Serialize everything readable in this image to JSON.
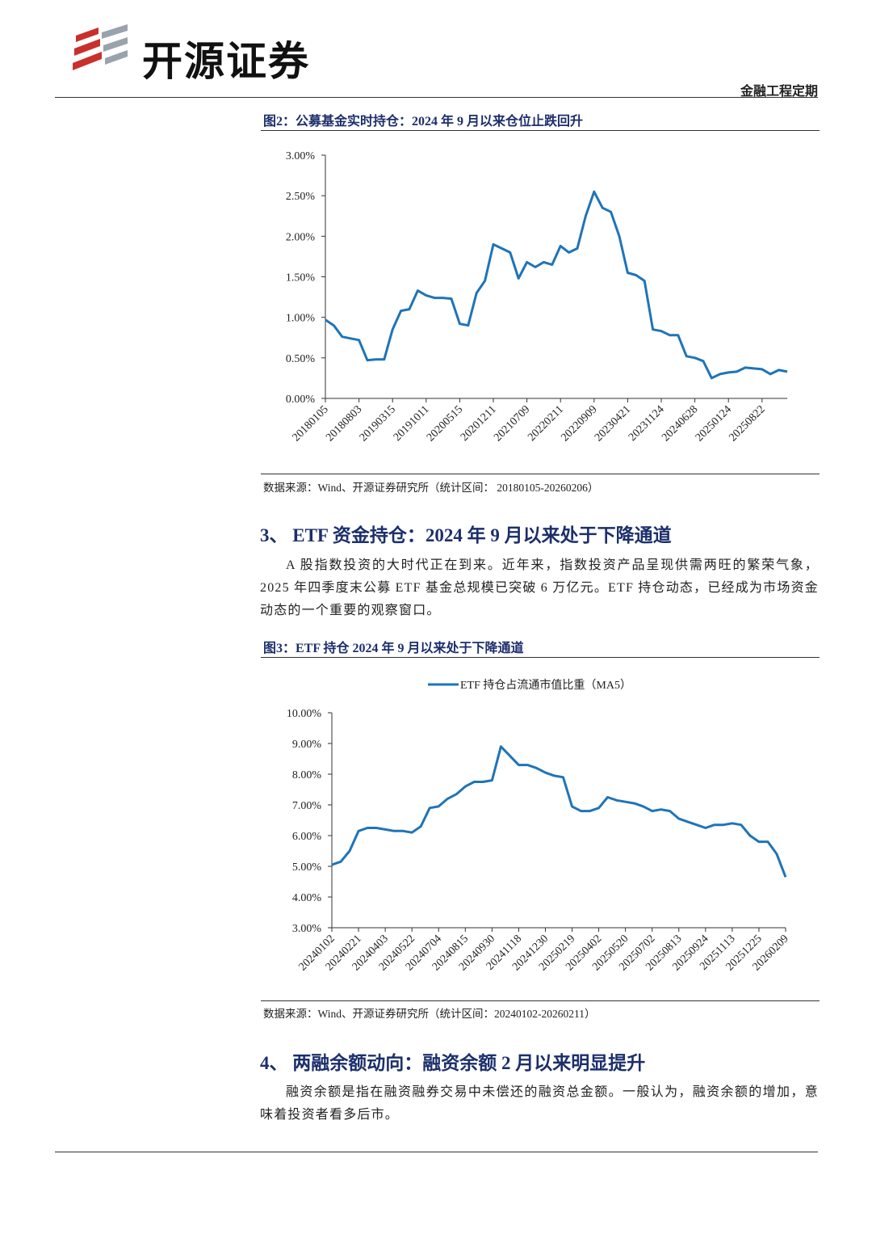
{
  "header": {
    "brand": "开源证券",
    "tag": "金融工程定期"
  },
  "figures": [
    {
      "title": "图2：公募基金实时持仓：2024 年 9 月以来仓位止跌回升",
      "source": "数据来源：Wind、开源证券研究所（统计区间： 20180105-20260206）"
    },
    {
      "title": "图3：ETF 持仓 2024 年 9 月以来处于下降通道",
      "source": "数据来源：Wind、开源证券研究所（统计区间：20240102-20260211）"
    }
  ],
  "sections": [
    {
      "heading": "3、 ETF 资金持仓：2024 年 9 月以来处于下降通道",
      "paragraph": "A 股指数投资的大时代正在到来。近年来，指数投资产品呈现供需两旺的繁荣气象，2025 年四季度末公募 ETF 基金总规模已突破 6 万亿元。ETF 持仓动态，已经成为市场资金动态的一个重要的观察窗口。"
    },
    {
      "heading": "4、 两融余额动向：融资余额 2 月以来明显提升",
      "paragraph": "融资余额是指在融资融券交易中未偿还的融资总金额。一般认为，融资余额的增加，意味着投资者看多后市。"
    }
  ],
  "chart_data": [
    {
      "type": "line",
      "categories": [
        "20180105",
        null,
        null,
        null,
        "20180803",
        null,
        null,
        null,
        "20190315",
        null,
        null,
        null,
        "20191011",
        null,
        null,
        null,
        "20200515",
        null,
        null,
        null,
        "20201211",
        null,
        null,
        null,
        "20210709",
        null,
        null,
        null,
        "20220211",
        null,
        null,
        null,
        "20220909",
        null,
        null,
        null,
        "20230421",
        null,
        null,
        null,
        "20231124",
        null,
        null,
        null,
        "20240628",
        null,
        null,
        null,
        "20250124",
        null,
        null,
        null,
        "20250822",
        null,
        null,
        null
      ],
      "series": [
        {
          "color": "#1f74b8",
          "values": [
            0.97,
            0.9,
            0.76,
            0.74,
            0.72,
            0.47,
            0.48,
            0.48,
            0.85,
            1.08,
            1.1,
            1.33,
            1.27,
            1.24,
            1.24,
            1.23,
            0.92,
            0.9,
            1.3,
            1.45,
            1.9,
            1.85,
            1.8,
            1.48,
            1.68,
            1.62,
            1.68,
            1.65,
            1.88,
            1.8,
            1.85,
            2.25,
            2.55,
            2.35,
            2.3,
            2.0,
            1.55,
            1.52,
            1.45,
            0.85,
            0.83,
            0.78,
            0.78,
            0.52,
            0.5,
            0.46,
            0.25,
            0.3,
            0.32,
            0.33,
            0.38,
            0.37,
            0.36,
            0.3,
            0.35,
            0.33
          ]
        }
      ],
      "ylim": [
        0,
        3
      ],
      "yticks": [
        {
          "value": 0,
          "label": "0.00%"
        },
        {
          "value": 0.5,
          "label": "0.50%"
        },
        {
          "value": 1,
          "label": "1.00%"
        },
        {
          "value": 1.5,
          "label": "1.50%"
        },
        {
          "value": 2,
          "label": "2.00%"
        },
        {
          "value": 2.5,
          "label": "2.50%"
        },
        {
          "value": 3,
          "label": "3.00%"
        }
      ]
    },
    {
      "type": "line",
      "categories": [
        "20240102",
        null,
        null,
        "20240221",
        null,
        null,
        "20240403",
        null,
        null,
        "20240522",
        null,
        null,
        "20240704",
        null,
        null,
        "20240815",
        null,
        null,
        "20240930",
        null,
        null,
        "20241118",
        null,
        null,
        "20241230",
        null,
        null,
        "20250219",
        null,
        null,
        "20250402",
        null,
        null,
        "20250520",
        null,
        null,
        "20250702",
        null,
        null,
        "20250813",
        null,
        null,
        "20250924",
        null,
        null,
        "20251113",
        null,
        null,
        "20251225",
        null,
        null,
        "20260209"
      ],
      "series": [
        {
          "name": "ETF 持仓占流通市值比重（MA5）",
          "color": "#1f74b8",
          "values": [
            5.05,
            5.15,
            5.5,
            6.15,
            6.25,
            6.25,
            6.2,
            6.15,
            6.15,
            6.1,
            6.3,
            6.9,
            6.95,
            7.2,
            7.35,
            7.6,
            7.75,
            7.75,
            7.8,
            8.9,
            8.6,
            8.3,
            8.3,
            8.2,
            8.05,
            7.95,
            7.9,
            6.95,
            6.8,
            6.8,
            6.9,
            7.25,
            7.15,
            7.1,
            7.05,
            6.95,
            6.8,
            6.85,
            6.8,
            6.55,
            6.45,
            6.35,
            6.25,
            6.35,
            6.35,
            6.4,
            6.35,
            6.0,
            5.8,
            5.8,
            5.4,
            4.65
          ]
        }
      ],
      "ylim": [
        3,
        10
      ],
      "yticks": [
        {
          "value": 3,
          "label": "3.00%"
        },
        {
          "value": 4,
          "label": "4.00%"
        },
        {
          "value": 5,
          "label": "5.00%"
        },
        {
          "value": 6,
          "label": "6.00%"
        },
        {
          "value": 7,
          "label": "7.00%"
        },
        {
          "value": 8,
          "label": "8.00%"
        },
        {
          "value": 9,
          "label": "9.00%"
        },
        {
          "value": 10,
          "label": "10.00%"
        }
      ]
    }
  ]
}
